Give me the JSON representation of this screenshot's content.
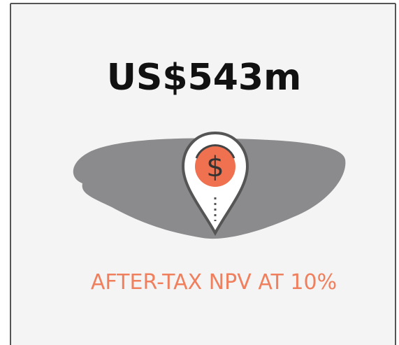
{
  "card": {
    "value": "US$543m",
    "icon_symbol": "$",
    "caption": "AFTER-TAX NPV AT 10%"
  }
}
